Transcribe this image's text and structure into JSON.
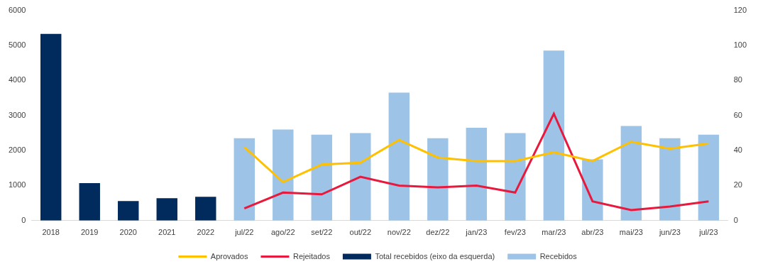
{
  "chart_data": {
    "type": "bar",
    "categories": [
      "2018",
      "2019",
      "2020",
      "2021",
      "2022",
      "jul/22",
      "ago/22",
      "set/22",
      "out/22",
      "nov/22",
      "dez/22",
      "jan/23",
      "fev/23",
      "mar/23",
      "abr/23",
      "mai/23",
      "jun/23",
      "jul/23"
    ],
    "series": [
      {
        "name": "Total recebidos (eixo da esquerda)",
        "type": "bar",
        "color": "#002b5c",
        "values": [
          5330,
          1070,
          560,
          640,
          680,
          null,
          null,
          null,
          null,
          null,
          null,
          null,
          null,
          null,
          null,
          null,
          null,
          null
        ]
      },
      {
        "name": "Recebidos",
        "type": "bar",
        "color": "#9dc3e6",
        "axis": "y2",
        "values": [
          null,
          null,
          null,
          null,
          null,
          47,
          52,
          49,
          50,
          73,
          47,
          53,
          50,
          97,
          35,
          54,
          47,
          49
        ]
      },
      {
        "name": "Aprovados",
        "type": "line",
        "color": "#ffc000",
        "axis": "y2",
        "marker": "none",
        "values": [
          null,
          null,
          null,
          null,
          null,
          42,
          22,
          32,
          33,
          46,
          36,
          34,
          34,
          39,
          34,
          45,
          41,
          44
        ]
      },
      {
        "name": "Rejeitados",
        "type": "line",
        "color": "#e8193c",
        "axis": "y2",
        "marker": "none",
        "values": [
          null,
          null,
          null,
          null,
          null,
          7,
          16,
          15,
          25,
          20,
          19,
          20,
          16,
          61,
          11,
          6,
          8,
          11
        ]
      }
    ],
    "ylim": [
      0,
      6000
    ],
    "yticks": [
      0,
      1000,
      2000,
      3000,
      4000,
      5000,
      6000
    ],
    "y2lim": [
      0,
      120
    ],
    "y2ticks": [
      0,
      20,
      40,
      60,
      80,
      100,
      120
    ],
    "grid": false,
    "legend": "bottom"
  }
}
